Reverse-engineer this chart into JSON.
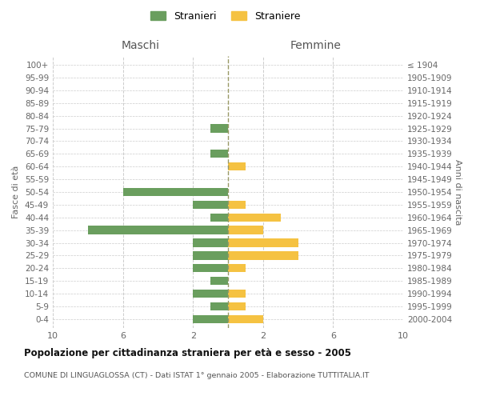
{
  "age_groups": [
    "0-4",
    "5-9",
    "10-14",
    "15-19",
    "20-24",
    "25-29",
    "30-34",
    "35-39",
    "40-44",
    "45-49",
    "50-54",
    "55-59",
    "60-64",
    "65-69",
    "70-74",
    "75-79",
    "80-84",
    "85-89",
    "90-94",
    "95-99",
    "100+"
  ],
  "birth_years": [
    "2000-2004",
    "1995-1999",
    "1990-1994",
    "1985-1989",
    "1980-1984",
    "1975-1979",
    "1970-1974",
    "1965-1969",
    "1960-1964",
    "1955-1959",
    "1950-1954",
    "1945-1949",
    "1940-1944",
    "1935-1939",
    "1930-1934",
    "1925-1929",
    "1920-1924",
    "1915-1919",
    "1910-1914",
    "1905-1909",
    "≤ 1904"
  ],
  "maschi": [
    2,
    1,
    2,
    1,
    2,
    2,
    2,
    8,
    1,
    2,
    6,
    0,
    0,
    1,
    0,
    1,
    0,
    0,
    0,
    0,
    0
  ],
  "femmine": [
    2,
    1,
    1,
    0,
    1,
    4,
    4,
    2,
    3,
    1,
    0,
    0,
    1,
    0,
    0,
    0,
    0,
    0,
    0,
    0,
    0
  ],
  "maschi_color": "#6a9e5e",
  "femmine_color": "#f5c242",
  "title": "Popolazione per cittadinanza straniera per età e sesso - 2005",
  "subtitle": "COMUNE DI LINGUAGLOSSA (CT) - Dati ISTAT 1° gennaio 2005 - Elaborazione TUTTITALIA.IT",
  "xlabel_left": "Maschi",
  "xlabel_right": "Femmine",
  "ylabel_left": "Fasce di età",
  "ylabel_right": "Anni di nascita",
  "legend_maschi": "Stranieri",
  "legend_femmine": "Straniere",
  "xlim": 10,
  "background_color": "#ffffff",
  "grid_color": "#cccccc"
}
